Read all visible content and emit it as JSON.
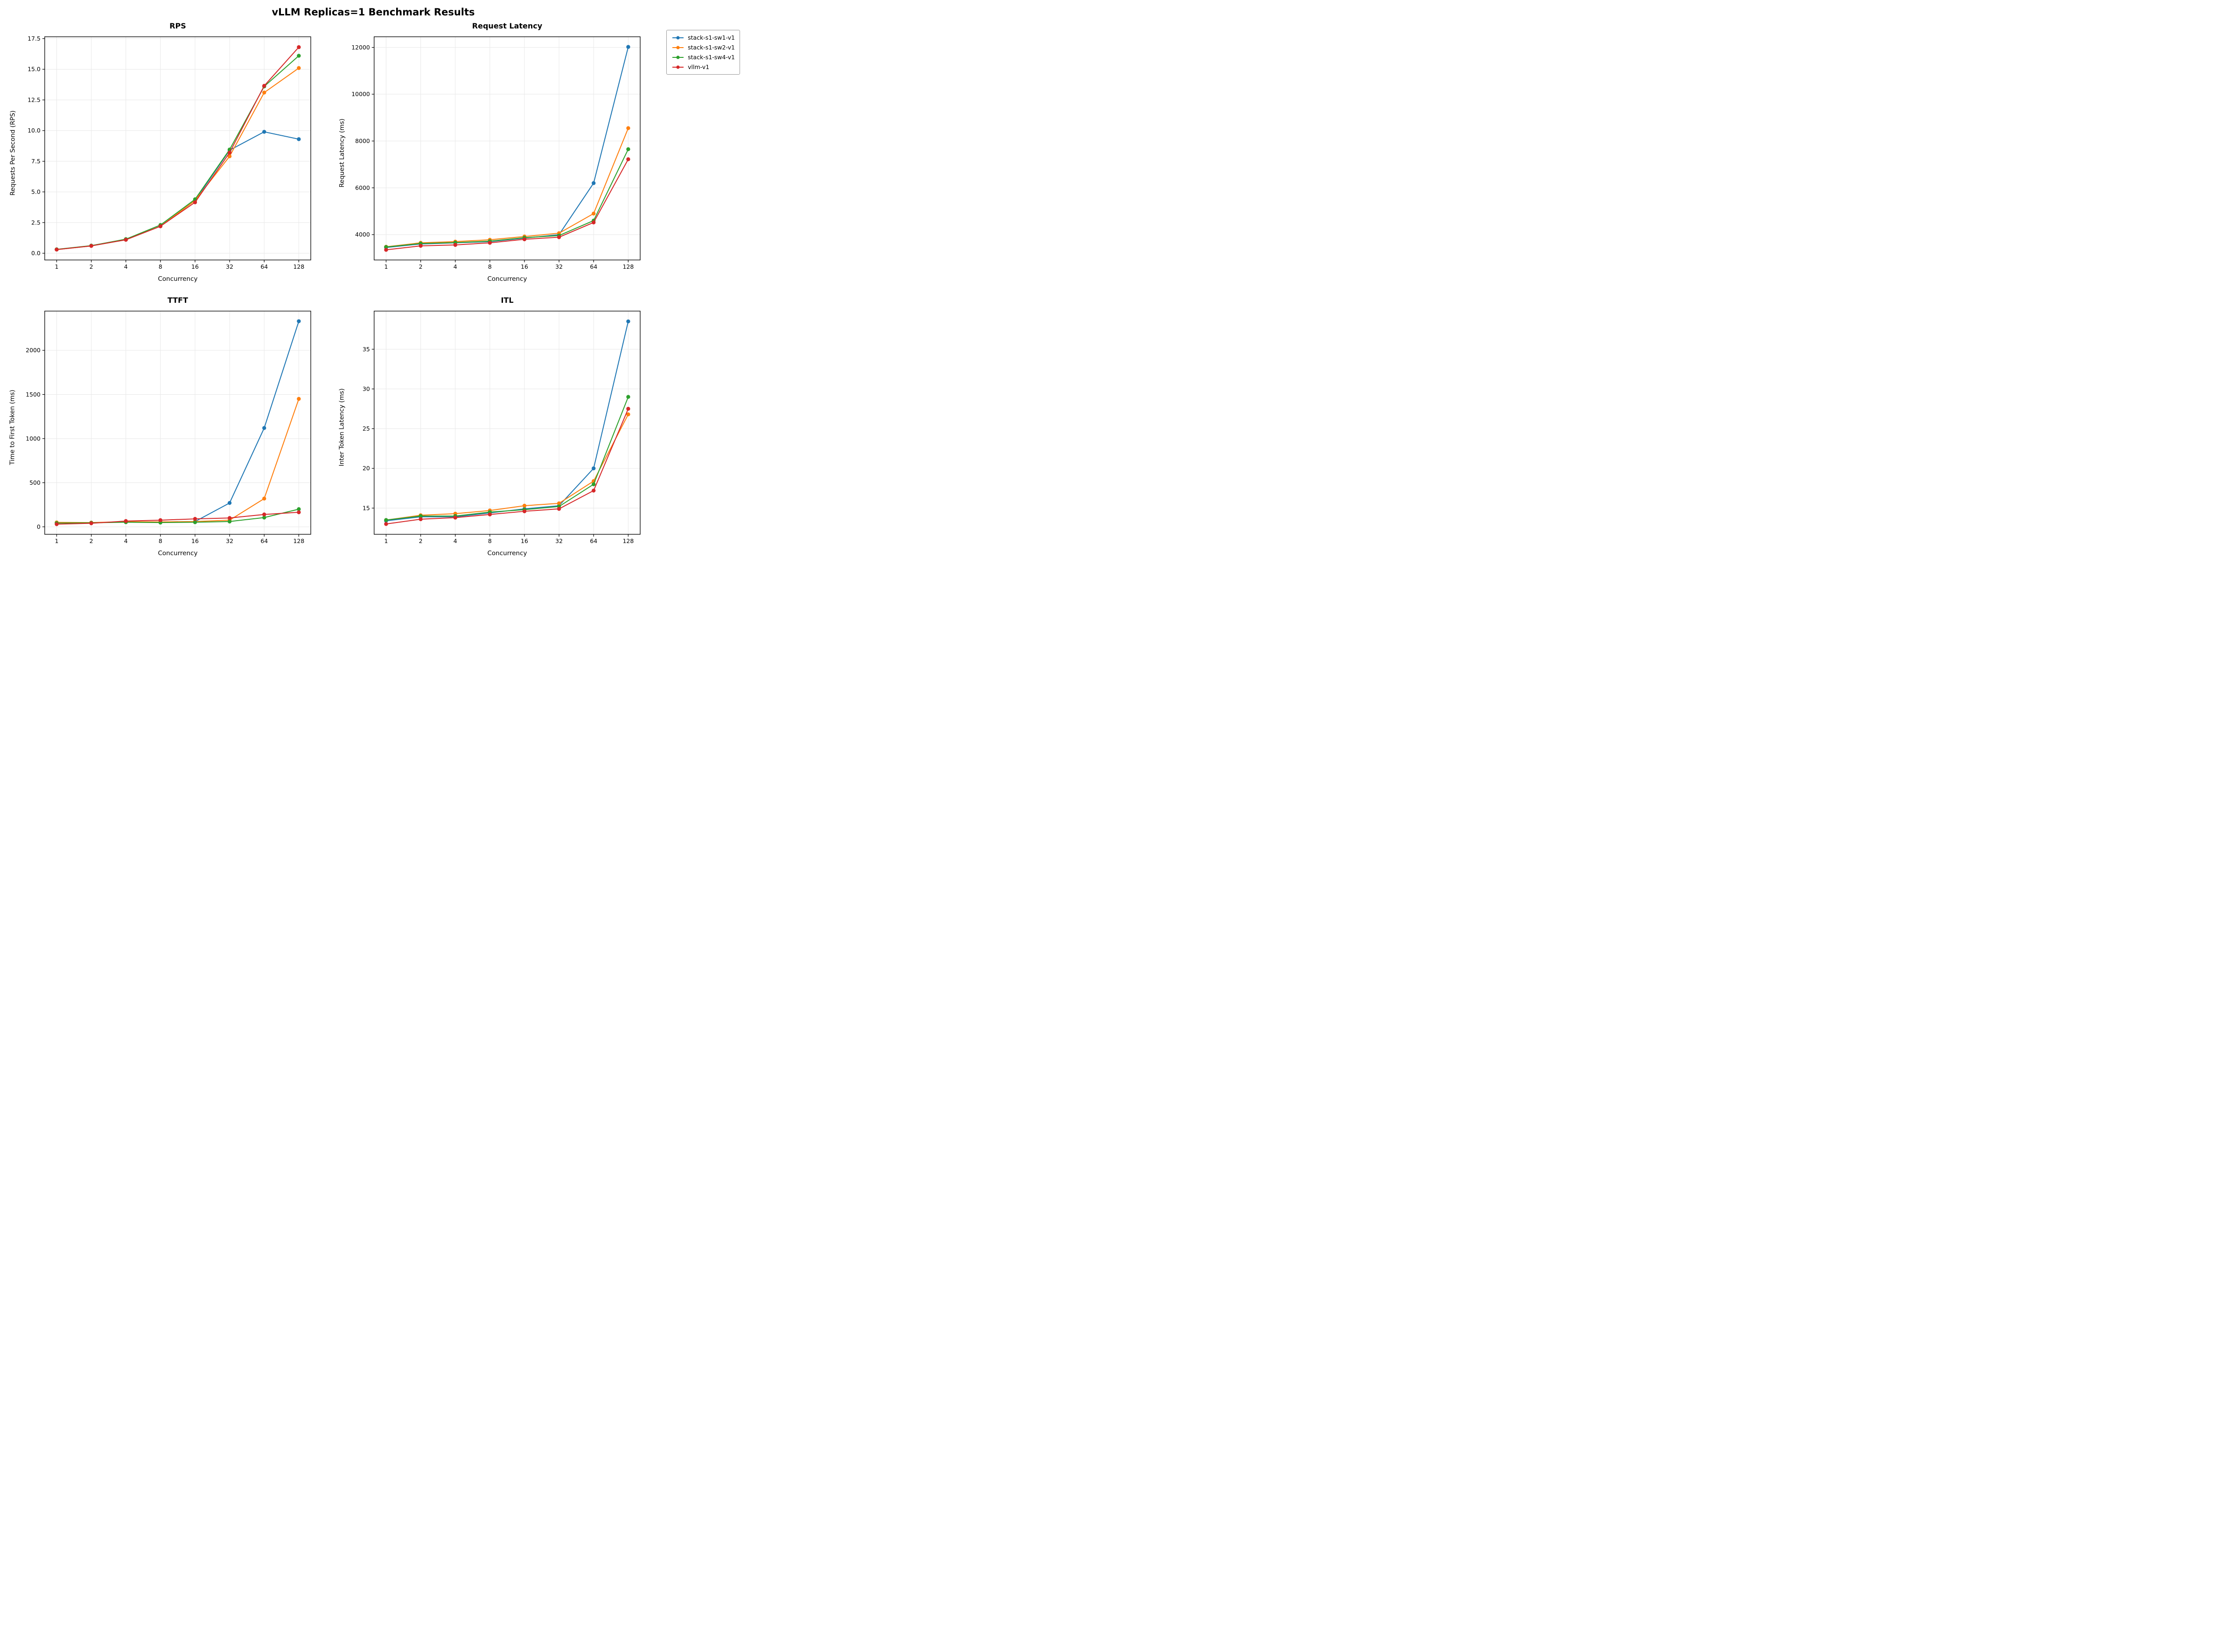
{
  "figure": {
    "title": "vLLM Replicas=1 Benchmark Results"
  },
  "legend": {
    "entries": [
      {
        "label": "stack-s1-sw1-v1",
        "color": "#1f77b4"
      },
      {
        "label": "stack-s1-sw2-v1",
        "color": "#ff7f0e"
      },
      {
        "label": "stack-s1-sw4-v1",
        "color": "#2ca02c"
      },
      {
        "label": "vllm-v1",
        "color": "#d62728"
      }
    ]
  },
  "chart_data": [
    {
      "type": "line",
      "title": "RPS",
      "xlabel": "Concurrency",
      "ylabel": "Requests Per Second (RPS)",
      "x_scale": "log2",
      "x": [
        1,
        2,
        4,
        8,
        16,
        32,
        64,
        128
      ],
      "xtick_labels": [
        "1",
        "2",
        "4",
        "8",
        "16",
        "32",
        "64",
        "128"
      ],
      "yticks": [
        0.0,
        2.5,
        5.0,
        7.5,
        10.0,
        12.5,
        15.0,
        17.5
      ],
      "ytick_labels": [
        "0.0",
        "2.5",
        "5.0",
        "7.5",
        "10.0",
        "12.5",
        "15.0",
        "17.5"
      ],
      "ylim": [
        -0.55,
        17.65
      ],
      "grid": true,
      "series": [
        {
          "name": "stack-s1-sw1-v1",
          "color": "#1f77b4",
          "values": [
            0.3,
            0.6,
            1.1,
            2.2,
            4.3,
            8.4,
            9.9,
            9.3
          ]
        },
        {
          "name": "stack-s1-sw2-v1",
          "color": "#ff7f0e",
          "values": [
            0.3,
            0.6,
            1.1,
            2.2,
            4.3,
            7.9,
            13.1,
            15.1
          ]
        },
        {
          "name": "stack-s1-sw4-v1",
          "color": "#2ca02c",
          "values": [
            0.32,
            0.62,
            1.15,
            2.3,
            4.4,
            8.45,
            13.6,
            16.1
          ]
        },
        {
          "name": "vllm-v1",
          "color": "#d62728",
          "values": [
            0.3,
            0.6,
            1.1,
            2.2,
            4.15,
            8.2,
            13.65,
            16.8
          ]
        }
      ]
    },
    {
      "type": "line",
      "title": "Request Latency",
      "xlabel": "Concurrency",
      "ylabel": "Request Latency (ms)",
      "x_scale": "log2",
      "x": [
        1,
        2,
        4,
        8,
        16,
        32,
        64,
        128
      ],
      "xtick_labels": [
        "1",
        "2",
        "4",
        "8",
        "16",
        "32",
        "64",
        "128"
      ],
      "yticks": [
        4000,
        6000,
        8000,
        10000,
        12000
      ],
      "ytick_labels": [
        "4000",
        "6000",
        "8000",
        "10000",
        "12000"
      ],
      "ylim": [
        2916,
        12455
      ],
      "grid": true,
      "series": [
        {
          "name": "stack-s1-sw1-v1",
          "color": "#1f77b4",
          "values": [
            3450,
            3600,
            3650,
            3700,
            3850,
            4000,
            6200,
            12020
          ]
        },
        {
          "name": "stack-s1-sw2-v1",
          "color": "#ff7f0e",
          "values": [
            3480,
            3650,
            3700,
            3780,
            3920,
            4060,
            4900,
            8550
          ]
        },
        {
          "name": "stack-s1-sw4-v1",
          "color": "#2ca02c",
          "values": [
            3470,
            3620,
            3660,
            3720,
            3870,
            3960,
            4600,
            7650
          ]
        },
        {
          "name": "vllm-v1",
          "color": "#d62728",
          "values": [
            3350,
            3520,
            3560,
            3650,
            3800,
            3890,
            4520,
            7220
          ]
        }
      ]
    },
    {
      "type": "line",
      "title": "TTFT",
      "xlabel": "Concurrency",
      "ylabel": "Time to First Token (ms)",
      "x_scale": "log2",
      "x": [
        1,
        2,
        4,
        8,
        16,
        32,
        64,
        128
      ],
      "xtick_labels": [
        "1",
        "2",
        "4",
        "8",
        "16",
        "32",
        "64",
        "128"
      ],
      "yticks": [
        0,
        500,
        1000,
        1500,
        2000
      ],
      "ytick_labels": [
        "0",
        "500",
        "1000",
        "1500",
        "2000"
      ],
      "ylim": [
        -85,
        2445
      ],
      "grid": true,
      "series": [
        {
          "name": "stack-s1-sw1-v1",
          "color": "#1f77b4",
          "values": [
            45,
            45,
            55,
            55,
            60,
            270,
            1120,
            2330
          ]
        },
        {
          "name": "stack-s1-sw2-v1",
          "color": "#ff7f0e",
          "values": [
            50,
            48,
            58,
            55,
            60,
            75,
            320,
            1450
          ]
        },
        {
          "name": "stack-s1-sw4-v1",
          "color": "#2ca02c",
          "values": [
            42,
            45,
            52,
            48,
            52,
            60,
            105,
            200
          ]
        },
        {
          "name": "vllm-v1",
          "color": "#d62728",
          "values": [
            30,
            40,
            65,
            75,
            90,
            100,
            140,
            165
          ]
        }
      ]
    },
    {
      "type": "line",
      "title": "ITL",
      "xlabel": "Concurrency",
      "ylabel": "Inter Token Latency (ms)",
      "x_scale": "log2",
      "x": [
        1,
        2,
        4,
        8,
        16,
        32,
        64,
        128
      ],
      "xtick_labels": [
        "1",
        "2",
        "4",
        "8",
        "16",
        "32",
        "64",
        "128"
      ],
      "yticks": [
        15,
        20,
        25,
        30,
        35
      ],
      "ytick_labels": [
        "15",
        "20",
        "25",
        "30",
        "35"
      ],
      "ylim": [
        11.7,
        39.8
      ],
      "grid": true,
      "series": [
        {
          "name": "stack-s1-sw1-v1",
          "color": "#1f77b4",
          "values": [
            13.4,
            13.9,
            13.9,
            14.4,
            14.9,
            15.3,
            20.0,
            38.5
          ]
        },
        {
          "name": "stack-s1-sw2-v1",
          "color": "#ff7f0e",
          "values": [
            13.5,
            14.1,
            14.3,
            14.7,
            15.3,
            15.6,
            18.4,
            26.8
          ]
        },
        {
          "name": "stack-s1-sw4-v1",
          "color": "#2ca02c",
          "values": [
            13.5,
            14.0,
            14.0,
            14.5,
            14.8,
            15.2,
            18.0,
            29.0
          ]
        },
        {
          "name": "vllm-v1",
          "color": "#d62728",
          "values": [
            13.0,
            13.6,
            13.8,
            14.2,
            14.6,
            14.9,
            17.2,
            27.5
          ]
        }
      ]
    }
  ]
}
